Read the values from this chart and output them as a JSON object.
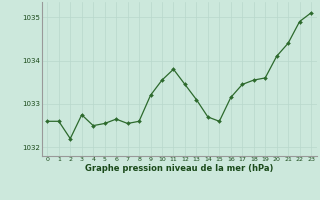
{
  "x": [
    0,
    1,
    2,
    3,
    4,
    5,
    6,
    7,
    8,
    9,
    10,
    11,
    12,
    13,
    14,
    15,
    16,
    17,
    18,
    19,
    20,
    21,
    22,
    23
  ],
  "y": [
    1032.6,
    1032.6,
    1032.2,
    1032.75,
    1032.5,
    1032.55,
    1032.65,
    1032.55,
    1032.6,
    1033.2,
    1033.55,
    1033.8,
    1033.45,
    1033.1,
    1032.7,
    1032.6,
    1033.15,
    1033.45,
    1033.55,
    1033.6,
    1034.1,
    1034.4,
    1034.9,
    1035.1
  ],
  "line_color": "#2d6a2d",
  "marker_color": "#2d6a2d",
  "bg_color": "#cce8dc",
  "grid_color": "#b8d8cc",
  "xlabel": "Graphe pression niveau de la mer (hPa)",
  "xlabel_color": "#1a4a1a",
  "tick_color": "#1a4a1a",
  "ylim": [
    1031.8,
    1035.35
  ],
  "yticks": [
    1032,
    1033,
    1034,
    1035
  ],
  "xlim": [
    -0.5,
    23.5
  ],
  "xticks": [
    0,
    1,
    2,
    3,
    4,
    5,
    6,
    7,
    8,
    9,
    10,
    11,
    12,
    13,
    14,
    15,
    16,
    17,
    18,
    19,
    20,
    21,
    22,
    23
  ],
  "figsize": [
    3.2,
    2.0
  ],
  "dpi": 100
}
